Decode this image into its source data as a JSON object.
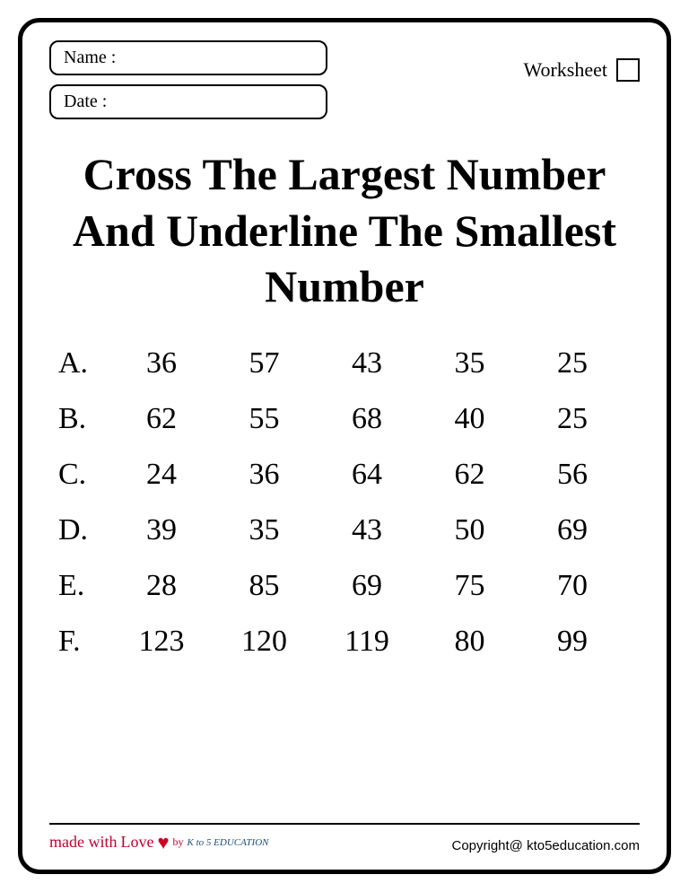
{
  "header": {
    "name_label": "Name :",
    "date_label": "Date :",
    "worksheet_label": "Worksheet"
  },
  "title": "Cross The Largest Number And Underline The Smallest Number",
  "rows": [
    {
      "label": "A.",
      "numbers": [
        "36",
        "57",
        "43",
        "35",
        "25"
      ]
    },
    {
      "label": "B.",
      "numbers": [
        "62",
        "55",
        "68",
        "40",
        "25"
      ]
    },
    {
      "label": "C.",
      "numbers": [
        "24",
        "36",
        "64",
        "62",
        "56"
      ]
    },
    {
      "label": "D.",
      "numbers": [
        "39",
        "35",
        "43",
        "50",
        "69"
      ]
    },
    {
      "label": "E.",
      "numbers": [
        "28",
        "85",
        "69",
        "75",
        "70"
      ]
    },
    {
      "label": "F.",
      "numbers": [
        "123",
        "120",
        "119",
        "80",
        "99"
      ]
    }
  ],
  "footer": {
    "made_with": "made with",
    "love": "Love",
    "by": "by",
    "brand": "K to 5 EDUCATION",
    "copyright": "Copyright@ kto5education.com"
  }
}
